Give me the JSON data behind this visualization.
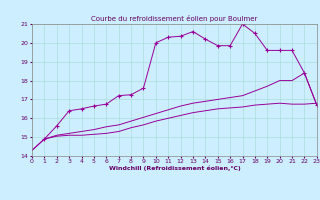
{
  "title": "Courbe du refroidissement éolien pour Boulmer",
  "xlabel": "Windchill (Refroidissement éolien,°C)",
  "bg_color": "#cceeff",
  "line_color": "#990099",
  "grid_color": "#aadddd",
  "text_color": "#660066",
  "xlim": [
    0,
    23
  ],
  "ylim": [
    14,
    21
  ],
  "xticks": [
    0,
    1,
    2,
    3,
    4,
    5,
    6,
    7,
    8,
    9,
    10,
    11,
    12,
    13,
    14,
    15,
    16,
    17,
    18,
    19,
    20,
    21,
    22,
    23
  ],
  "yticks": [
    14,
    15,
    16,
    17,
    18,
    19,
    20,
    21
  ],
  "series": [
    {
      "x": [
        0,
        1,
        2,
        3,
        4,
        5,
        6,
        7,
        8,
        9,
        10,
        11,
        12,
        13,
        14,
        15,
        16,
        17,
        18,
        19,
        20,
        21,
        22,
        23
      ],
      "y": [
        14.3,
        14.9,
        15.05,
        15.1,
        15.1,
        15.15,
        15.2,
        15.3,
        15.5,
        15.65,
        15.85,
        16.0,
        16.15,
        16.3,
        16.4,
        16.5,
        16.55,
        16.6,
        16.7,
        16.75,
        16.8,
        16.75,
        16.75,
        16.8
      ],
      "marker": false
    },
    {
      "x": [
        0,
        1,
        2,
        3,
        4,
        5,
        6,
        7,
        8,
        9,
        10,
        11,
        12,
        13,
        14,
        15,
        16,
        17,
        18,
        19,
        20,
        21,
        22,
        23
      ],
      "y": [
        14.3,
        14.9,
        15.1,
        15.2,
        15.3,
        15.4,
        15.55,
        15.65,
        15.85,
        16.05,
        16.25,
        16.45,
        16.65,
        16.8,
        16.9,
        17.0,
        17.1,
        17.2,
        17.45,
        17.7,
        18.0,
        18.0,
        18.4,
        16.7
      ],
      "marker": false
    },
    {
      "x": [
        1,
        2,
        3,
        4,
        5,
        6,
        7,
        8,
        9,
        10,
        11,
        12,
        13,
        14,
        15,
        16,
        17,
        18,
        19,
        20,
        21,
        22,
        23
      ],
      "y": [
        14.9,
        15.6,
        16.4,
        16.5,
        16.65,
        16.75,
        17.2,
        17.25,
        17.6,
        20.0,
        20.3,
        20.35,
        20.6,
        20.2,
        19.85,
        19.85,
        21.0,
        20.5,
        19.6,
        19.6,
        19.6,
        18.4,
        16.7
      ],
      "marker": true
    }
  ]
}
